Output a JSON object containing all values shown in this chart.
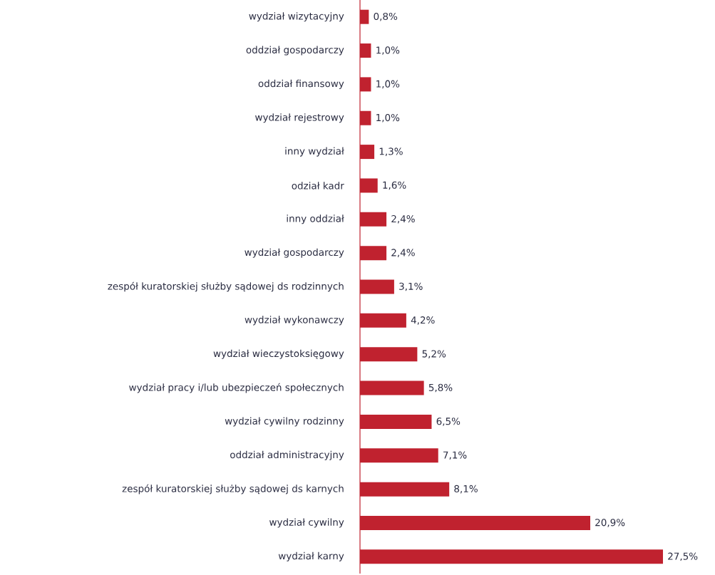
{
  "chart_data": {
    "type": "bar",
    "orientation": "horizontal",
    "color": "#c0222f",
    "categories": [
      "wydział wizytacyjny",
      "oddział gospodarczy",
      "oddział finansowy",
      "wydział rejestrowy",
      "inny wydział",
      "odział kadr",
      "inny oddział",
      "wydział gospodarczy",
      "zespół kuratorskiej służby sądowej ds rodzinnych",
      "wydział wykonawczy",
      "wydział wieczystoksięgowy",
      "wydział pracy i/lub ubezpieczeń społecznych",
      "wydział cywilny rodzinny",
      "oddział administracyjny",
      "zespół kuratorskiej służby sądowej ds karnych",
      "wydział cywilny",
      "wydział karny"
    ],
    "values": [
      0.8,
      1.0,
      1.0,
      1.0,
      1.3,
      1.6,
      2.4,
      2.4,
      3.1,
      4.2,
      5.2,
      5.8,
      6.5,
      7.1,
      8.1,
      20.9,
      27.5
    ],
    "value_labels": [
      "0,8%",
      "1,0%",
      "1,0%",
      "1,0%",
      "1,3%",
      "1,6%",
      "2,4%",
      "2,4%",
      "3,1%",
      "4,2%",
      "5,2%",
      "5,8%",
      "6,5%",
      "7,1%",
      "8,1%",
      "20,9%",
      "27,5%"
    ]
  }
}
